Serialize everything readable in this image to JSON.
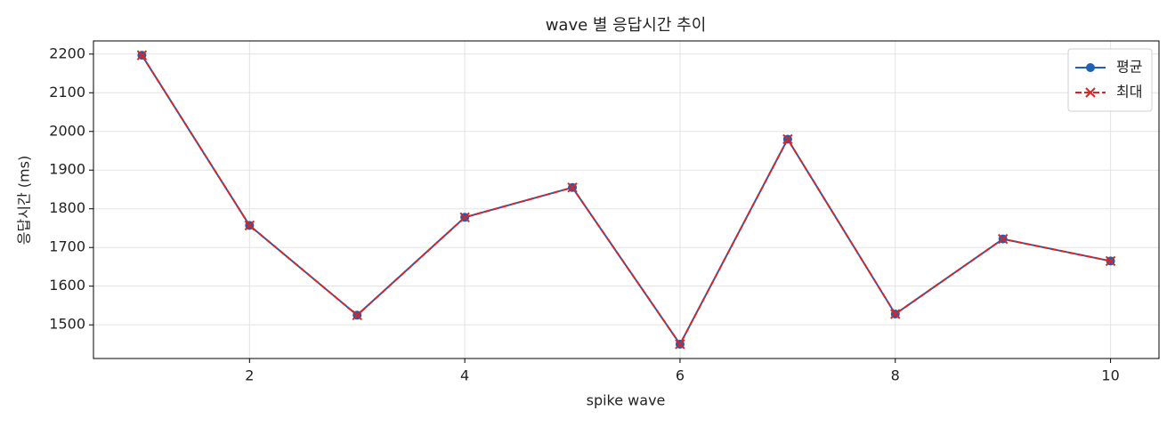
{
  "chart_data": {
    "type": "line",
    "title": "wave 별 응답시간 추이",
    "x_label": "spike wave",
    "y_label": "응답시간 (ms)",
    "x": [
      1,
      2,
      3,
      4,
      5,
      6,
      7,
      8,
      9,
      10
    ],
    "series": [
      {
        "name": "평균",
        "color": "#1f5fb4",
        "linestyle": "solid",
        "marker": "o",
        "values": [
          2197,
          1757,
          1525,
          1778,
          1855,
          1450,
          1980,
          1528,
          1722,
          1665
        ]
      },
      {
        "name": "최대",
        "color": "#d62728",
        "linestyle": "dashed",
        "marker": "x",
        "values": [
          2197,
          1757,
          1525,
          1778,
          1855,
          1450,
          1980,
          1528,
          1722,
          1665
        ]
      }
    ],
    "xlim": [
      0.55,
      10.45
    ],
    "xticks": [
      2,
      4,
      6,
      8,
      10
    ],
    "ylim": [
      1413,
      2234
    ],
    "yticks": [
      1500,
      1600,
      1700,
      1800,
      1900,
      2000,
      2100,
      2200
    ],
    "grid": true,
    "legend": "upper right"
  }
}
